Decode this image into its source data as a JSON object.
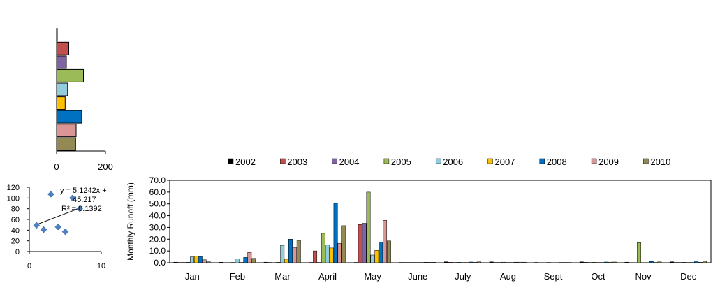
{
  "chart_data": [
    {
      "type": "bar",
      "orientation": "horizontal",
      "categories": [
        "2002",
        "2003",
        "2004",
        "2005",
        "2006",
        "2007",
        "2008",
        "2009",
        "2010"
      ],
      "values": [
        2,
        50,
        40,
        110,
        45,
        35,
        103,
        80,
        78
      ],
      "xlim": [
        0,
        200
      ],
      "x_ticks": [
        "0",
        "200"
      ],
      "colors": [
        "#000000",
        "#c0504d",
        "#8064a2",
        "#9bbb59",
        "#93cddd",
        "#ffc000",
        "#0070c0",
        "#d99694",
        "#938953"
      ]
    },
    {
      "type": "scatter",
      "x": [
        1,
        2,
        3,
        4,
        5,
        6,
        7
      ],
      "y": [
        49,
        41,
        107,
        46,
        37,
        100,
        80
      ],
      "xlim": [
        0,
        10
      ],
      "ylim": [
        0,
        120
      ],
      "x_ticks": [
        "0",
        "10"
      ],
      "y_ticks": [
        "0",
        "20",
        "40",
        "60",
        "80",
        "100",
        "120"
      ],
      "trendline": {
        "slope": 5.1242,
        "intercept": 45.217,
        "x_range": [
          1,
          7
        ]
      },
      "annotation_lines": [
        "y = 5.1242x +",
        "45.217",
        "R² = 0.1392"
      ],
      "marker_color": "#4f81bd"
    },
    {
      "type": "bar",
      "categories": [
        "Jan",
        "Feb",
        "Mar",
        "April",
        "May",
        "June",
        "July",
        "Aug",
        "Sept",
        "Oct",
        "Nov",
        "Dec"
      ],
      "series": [
        {
          "name": "2002",
          "color": "#000000",
          "values": [
            0.5,
            0.4,
            0.5,
            0.3,
            0.3,
            0.3,
            0.8,
            0.7,
            0.3,
            0.7,
            0.5,
            0.8
          ]
        },
        {
          "name": "2003",
          "color": "#c0504d",
          "values": [
            0.3,
            0.2,
            0.3,
            10,
            32.5,
            0.3,
            0.4,
            0.3,
            0.2,
            0.4,
            0.2,
            0.3
          ]
        },
        {
          "name": "2004",
          "color": "#8064a2",
          "values": [
            0.3,
            0.2,
            0.2,
            0.3,
            33.5,
            0.3,
            0.3,
            0.3,
            0.2,
            0.3,
            0.2,
            0.3
          ]
        },
        {
          "name": "2005",
          "color": "#9bbb59",
          "values": [
            0.4,
            0.3,
            0.4,
            25,
            60,
            0.3,
            0.4,
            0.5,
            0.3,
            0.4,
            17,
            0.4
          ]
        },
        {
          "name": "2006",
          "color": "#93cddd",
          "values": [
            5,
            3.3,
            14.8,
            15,
            6.5,
            0.3,
            0.3,
            0.3,
            0.2,
            0.3,
            0.2,
            0.3
          ]
        },
        {
          "name": "2007",
          "color": "#ffc000",
          "values": [
            5.5,
            0.3,
            3,
            12.5,
            10.5,
            0.3,
            0.3,
            0.3,
            0.2,
            0.3,
            0.2,
            0.3
          ]
        },
        {
          "name": "2008",
          "color": "#0070c0",
          "values": [
            5.3,
            4.5,
            20,
            50.5,
            17.5,
            0.4,
            0.6,
            0.5,
            0.3,
            0.6,
            1,
            1.5
          ]
        },
        {
          "name": "2009",
          "color": "#d99694",
          "values": [
            2.5,
            8.7,
            13,
            16.5,
            36,
            0.4,
            0.5,
            0.5,
            0.3,
            0.5,
            0.3,
            0.4
          ]
        },
        {
          "name": "2010",
          "color": "#938953",
          "values": [
            0.8,
            3.7,
            19,
            31.5,
            18.5,
            0.4,
            0.7,
            0.5,
            0.3,
            0.6,
            0.7,
            1.3
          ]
        }
      ],
      "ylabel": "Monthly  Runoff (mm)",
      "ylim": [
        0,
        70
      ],
      "y_ticks": [
        "0.0",
        "10.0",
        "20.0",
        "30.0",
        "40.0",
        "50.0",
        "60.0",
        "70.0"
      ],
      "legend_position": "top"
    }
  ]
}
